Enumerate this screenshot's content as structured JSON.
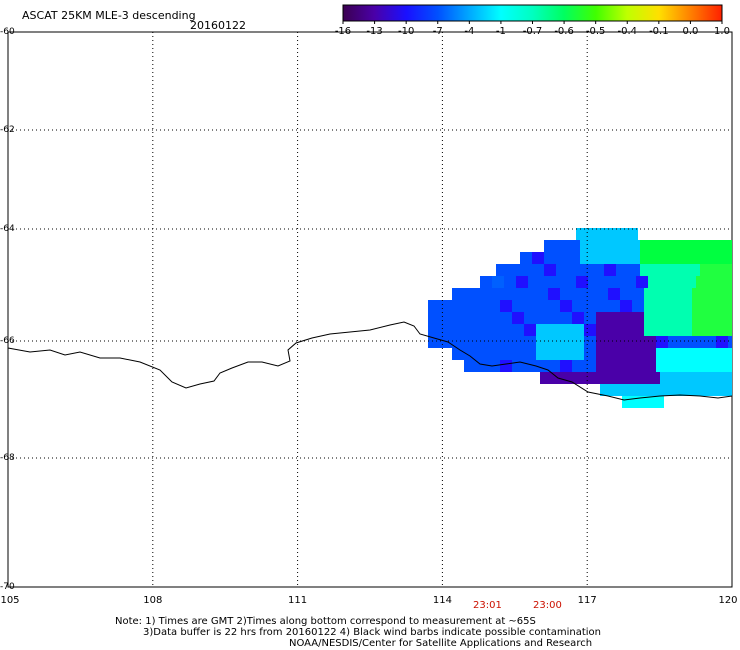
{
  "header": {
    "title": "ASCAT 25KM MLE-3 descending",
    "date": "20160122"
  },
  "colorbar": {
    "labels": [
      "-16",
      "-13",
      "-10",
      "-7",
      "-4",
      "-1",
      "-0.7",
      "-0.6",
      "-0.5",
      "-0.4",
      "-0.1",
      "0.0",
      "1.0"
    ],
    "colors": [
      "#3b0050",
      "#4a00a8",
      "#1a10ff",
      "#0050ff",
      "#00a8ff",
      "#00ffff",
      "#00ffc0",
      "#00ff60",
      "#40ff00",
      "#c0ff00",
      "#ffe000",
      "#ff8000",
      "#ff2000"
    ]
  },
  "map": {
    "lat_labels": [
      "-60",
      "-62",
      "-64",
      "-66",
      "-68",
      "-70"
    ],
    "lon_labels": [
      "105",
      "108",
      "111",
      "114",
      "117",
      "120"
    ],
    "lat_range": [
      -70,
      -60
    ],
    "lon_range": [
      105,
      120
    ],
    "grid": "dotted"
  },
  "time_labels": [
    "23:01",
    "23:00"
  ],
  "notes": {
    "line1": "Note: 1) Times are GMT 2)Times along bottom correspond to measurement at ~65S",
    "line2": "3)Data buffer is 22 hrs from 20160122 4) Black wind barbs indicate possible contamination",
    "line3": "NOAA/NESDIS/Center for Satellite Applications and Research"
  }
}
